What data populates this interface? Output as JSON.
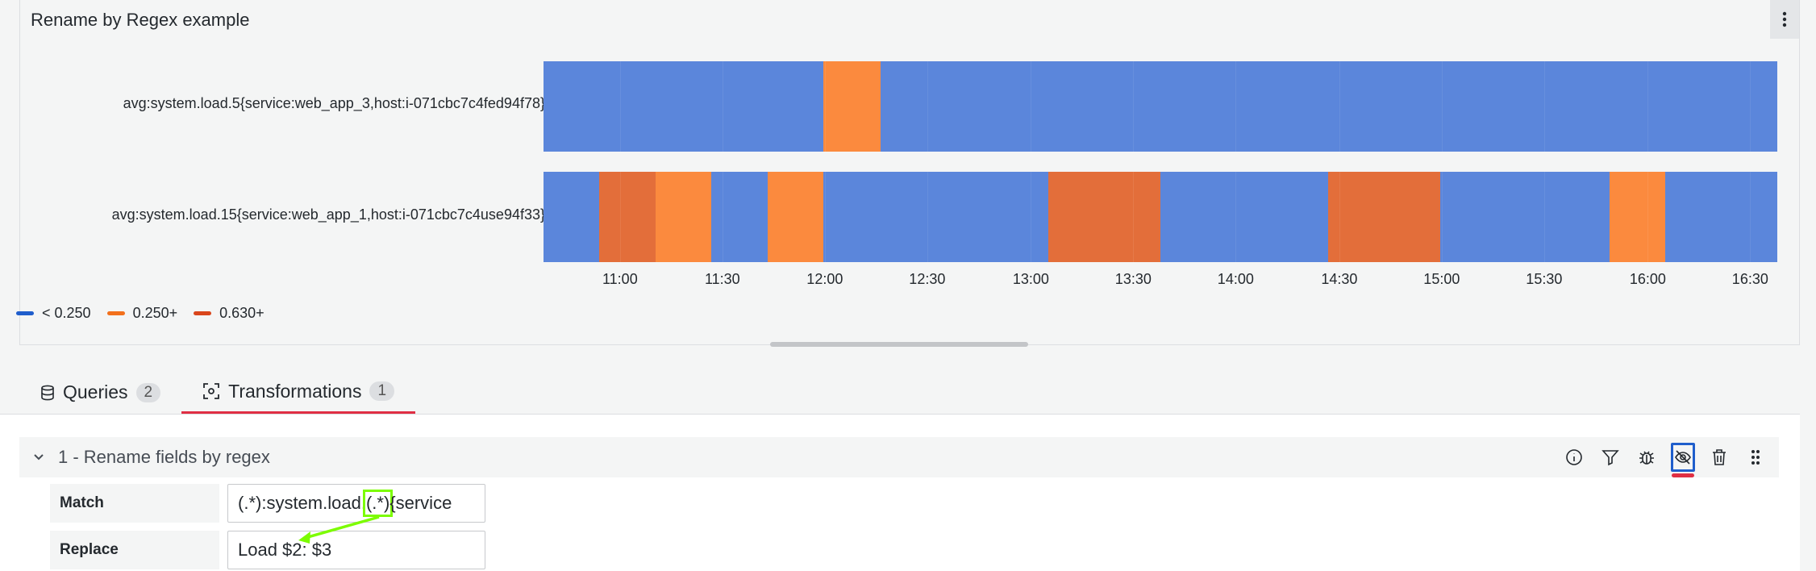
{
  "panel": {
    "title": "Rename by Regex example",
    "rows": [
      {
        "label": "avg:system.load.5{service:web_app_3,host:i-071cbc7c4fed94f78}",
        "segments": [
          {
            "start": 0.0,
            "end": 0.227,
            "color": "#5b86db"
          },
          {
            "start": 0.227,
            "end": 0.273,
            "color": "#fb8a3e"
          },
          {
            "start": 0.273,
            "end": 1.0,
            "color": "#5b86db"
          }
        ]
      },
      {
        "label": "avg:system.load.15{service:web_app_1,host:i-071cbc7c4use94f33}",
        "segments": [
          {
            "start": 0.0,
            "end": 0.045,
            "color": "#5b86db"
          },
          {
            "start": 0.045,
            "end": 0.091,
            "color": "#e36e3a"
          },
          {
            "start": 0.091,
            "end": 0.136,
            "color": "#fb8a3e"
          },
          {
            "start": 0.136,
            "end": 0.182,
            "color": "#5b86db"
          },
          {
            "start": 0.182,
            "end": 0.227,
            "color": "#fb8a3e"
          },
          {
            "start": 0.227,
            "end": 0.409,
            "color": "#5b86db"
          },
          {
            "start": 0.409,
            "end": 0.5,
            "color": "#e36e3a"
          },
          {
            "start": 0.5,
            "end": 0.636,
            "color": "#5b86db"
          },
          {
            "start": 0.636,
            "end": 0.727,
            "color": "#e36e3a"
          },
          {
            "start": 0.727,
            "end": 0.864,
            "color": "#5b86db"
          },
          {
            "start": 0.864,
            "end": 0.909,
            "color": "#fb8a3e"
          },
          {
            "start": 0.909,
            "end": 1.0,
            "color": "#5b86db"
          }
        ]
      }
    ],
    "ticks": [
      {
        "label": "11:00",
        "pos": 0.062
      },
      {
        "label": "11:30",
        "pos": 0.145
      },
      {
        "label": "12:00",
        "pos": 0.228
      },
      {
        "label": "12:30",
        "pos": 0.311
      },
      {
        "label": "13:00",
        "pos": 0.395
      },
      {
        "label": "13:30",
        "pos": 0.478
      },
      {
        "label": "14:00",
        "pos": 0.561
      },
      {
        "label": "14:30",
        "pos": 0.645
      },
      {
        "label": "15:00",
        "pos": 0.728
      },
      {
        "label": "15:30",
        "pos": 0.811
      },
      {
        "label": "16:00",
        "pos": 0.895
      },
      {
        "label": "16:30",
        "pos": 0.978
      }
    ],
    "legend": [
      {
        "label": "< 0.250",
        "color": "#1f5ecc"
      },
      {
        "label": "0.250+",
        "color": "#f2701c"
      },
      {
        "label": "0.630+",
        "color": "#d9461c"
      }
    ]
  },
  "tabs": [
    {
      "label": "Queries",
      "count": "2",
      "icon": "database-icon"
    },
    {
      "label": "Transformations",
      "count": "1",
      "icon": "transform-icon"
    }
  ],
  "transformation": {
    "title": "1 - Rename fields by regex",
    "actions": [
      "info-icon",
      "filter-icon",
      "debug-icon",
      "eye-slash-icon",
      "trash-icon",
      "drag-icon"
    ],
    "match_label": "Match",
    "match_value_pre": "(.*):system.load.",
    "match_value_hl": "(.*)",
    "match_value_post": "{service",
    "replace_label": "Replace",
    "replace_value": "Load $2: $3"
  }
}
